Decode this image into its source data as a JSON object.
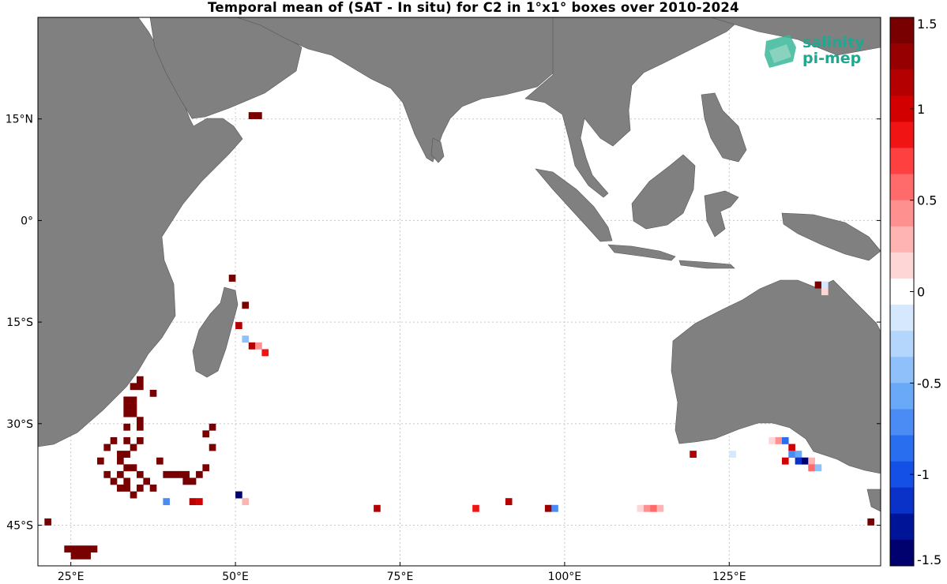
{
  "title": "Temporal mean of (SAT - In situ) for C2 in 1°x1° boxes over 2010-2024",
  "logo": {
    "line1": "salinity",
    "line2": "pi-mep"
  },
  "map": {
    "lon_range": [
      20,
      148
    ],
    "lat_range": [
      -51,
      30
    ],
    "lon_ticks": [
      {
        "value": 25,
        "label": "25°E"
      },
      {
        "value": 50,
        "label": "50°E"
      },
      {
        "value": 75,
        "label": "75°E"
      },
      {
        "value": 100,
        "label": "100°E"
      },
      {
        "value": 125,
        "label": "125°E"
      }
    ],
    "lat_ticks": [
      {
        "value": 15,
        "label": "15°N"
      },
      {
        "value": 0,
        "label": "0°"
      },
      {
        "value": -15,
        "label": "15°S"
      },
      {
        "value": -30,
        "label": "30°S"
      },
      {
        "value": -45,
        "label": "45°S"
      }
    ],
    "grid": true,
    "colors": {
      "land": "#808080",
      "ocean": "#ffffff",
      "grid": "#c8c8c8"
    }
  },
  "colorbar": {
    "range": [
      -1.5,
      1.5
    ],
    "tick_values": [
      1.5,
      1,
      0.5,
      0,
      -0.5,
      -1,
      -1.5
    ],
    "tick_labels": [
      "1.5",
      "1",
      "0.5",
      "0",
      "-0.5",
      "-1",
      "-1.5"
    ],
    "colors": [
      "#00006e",
      "#001498",
      "#0a32c8",
      "#1450e6",
      "#2a6ef0",
      "#4a8cf4",
      "#6aa8f8",
      "#90c0fa",
      "#b4d6fc",
      "#d6e8fe",
      "#ffffff",
      "#ffd6d6",
      "#ffb4b4",
      "#ff9090",
      "#ff6a6a",
      "#ff4040",
      "#f01414",
      "#d20000",
      "#b40000",
      "#960000",
      "#780000"
    ]
  },
  "chart_data": {
    "type": "heatmap",
    "title": "Temporal mean of (SAT - In situ) for C2 in 1°x1° boxes over 2010-2024",
    "value_range": [
      -1.5,
      1.5
    ],
    "cells": [
      {
        "lon": 52,
        "lat": 15,
        "v": 1.5
      },
      {
        "lon": 53,
        "lat": 15,
        "v": 1.5
      },
      {
        "lon": 49,
        "lat": -9,
        "v": 1.5
      },
      {
        "lon": 51,
        "lat": -13,
        "v": 1.5
      },
      {
        "lon": 50,
        "lat": -16,
        "v": 1.2
      },
      {
        "lon": 51,
        "lat": -18,
        "v": -0.5
      },
      {
        "lon": 52,
        "lat": -19,
        "v": 1.1
      },
      {
        "lon": 53,
        "lat": -19,
        "v": 0.4
      },
      {
        "lon": 54,
        "lat": -20,
        "v": 0.8
      },
      {
        "lon": 35,
        "lat": -24,
        "v": 1.5
      },
      {
        "lon": 34,
        "lat": -25,
        "v": 1.5
      },
      {
        "lon": 35,
        "lat": -25,
        "v": 1.5
      },
      {
        "lon": 37,
        "lat": -26,
        "v": 1.5
      },
      {
        "lon": 33,
        "lat": -27,
        "v": 1.5
      },
      {
        "lon": 34,
        "lat": -27,
        "v": 1.5
      },
      {
        "lon": 33,
        "lat": -28,
        "v": 1.5
      },
      {
        "lon": 34,
        "lat": -28,
        "v": 1.5
      },
      {
        "lon": 33,
        "lat": -29,
        "v": 1.5
      },
      {
        "lon": 34,
        "lat": -29,
        "v": 1.5
      },
      {
        "lon": 35,
        "lat": -30,
        "v": 1.5
      },
      {
        "lon": 33,
        "lat": -31,
        "v": 1.5
      },
      {
        "lon": 35,
        "lat": -31,
        "v": 1.5
      },
      {
        "lon": 46,
        "lat": -31,
        "v": 1.5
      },
      {
        "lon": 45,
        "lat": -32,
        "v": 1.5
      },
      {
        "lon": 31,
        "lat": -33,
        "v": 1.5
      },
      {
        "lon": 33,
        "lat": -33,
        "v": 1.5
      },
      {
        "lon": 35,
        "lat": -33,
        "v": 1.5
      },
      {
        "lon": 30,
        "lat": -34,
        "v": 1.5
      },
      {
        "lon": 34,
        "lat": -34,
        "v": 1.5
      },
      {
        "lon": 46,
        "lat": -34,
        "v": 1.5
      },
      {
        "lon": 32,
        "lat": -35,
        "v": 1.5
      },
      {
        "lon": 33,
        "lat": -35,
        "v": 1.5
      },
      {
        "lon": 29,
        "lat": -36,
        "v": 1.5
      },
      {
        "lon": 32,
        "lat": -36,
        "v": 1.5
      },
      {
        "lon": 38,
        "lat": -36,
        "v": 1.5
      },
      {
        "lon": 33,
        "lat": -37,
        "v": 1.5
      },
      {
        "lon": 34,
        "lat": -37,
        "v": 1.5
      },
      {
        "lon": 45,
        "lat": -37,
        "v": 1.5
      },
      {
        "lon": 30,
        "lat": -38,
        "v": 1.5
      },
      {
        "lon": 32,
        "lat": -38,
        "v": 1.5
      },
      {
        "lon": 35,
        "lat": -38,
        "v": 1.5
      },
      {
        "lon": 39,
        "lat": -38,
        "v": 1.5
      },
      {
        "lon": 40,
        "lat": -38,
        "v": 1.5
      },
      {
        "lon": 41,
        "lat": -38,
        "v": 1.5
      },
      {
        "lon": 42,
        "lat": -38,
        "v": 1.5
      },
      {
        "lon": 44,
        "lat": -38,
        "v": 1.5
      },
      {
        "lon": 31,
        "lat": -39,
        "v": 1.5
      },
      {
        "lon": 33,
        "lat": -39,
        "v": 1.5
      },
      {
        "lon": 36,
        "lat": -39,
        "v": 1.5
      },
      {
        "lon": 42,
        "lat": -39,
        "v": 1.5
      },
      {
        "lon": 43,
        "lat": -39,
        "v": 1.5
      },
      {
        "lon": 32,
        "lat": -40,
        "v": 1.5
      },
      {
        "lon": 33,
        "lat": -40,
        "v": 1.5
      },
      {
        "lon": 35,
        "lat": -40,
        "v": 1.5
      },
      {
        "lon": 37,
        "lat": -40,
        "v": 1.5
      },
      {
        "lon": 50,
        "lat": -41,
        "v": -1.5
      },
      {
        "lon": 34,
        "lat": -41,
        "v": 1.5
      },
      {
        "lon": 39,
        "lat": -42,
        "v": -0.7
      },
      {
        "lon": 43,
        "lat": -42,
        "v": 1.2
      },
      {
        "lon": 44,
        "lat": -42,
        "v": 1.0
      },
      {
        "lon": 51,
        "lat": -42,
        "v": 0.3
      },
      {
        "lon": 119,
        "lat": -35,
        "v": 1.2
      },
      {
        "lon": 125,
        "lat": -35,
        "v": -0.2
      },
      {
        "lon": 131,
        "lat": -33,
        "v": 0.1
      },
      {
        "lon": 132,
        "lat": -33,
        "v": 0.4
      },
      {
        "lon": 133,
        "lat": -33,
        "v": -0.9
      },
      {
        "lon": 134,
        "lat": -34,
        "v": 1.0
      },
      {
        "lon": 134,
        "lat": -35,
        "v": -0.7
      },
      {
        "lon": 135,
        "lat": -35,
        "v": -0.6
      },
      {
        "lon": 135,
        "lat": -36,
        "v": -1.2
      },
      {
        "lon": 136,
        "lat": -36,
        "v": -1.4
      },
      {
        "lon": 137,
        "lat": -36,
        "v": 0.3
      },
      {
        "lon": 137,
        "lat": -37,
        "v": 0.5
      },
      {
        "lon": 138,
        "lat": -37,
        "v": -0.4
      },
      {
        "lon": 133,
        "lat": -36,
        "v": 1.0
      },
      {
        "lon": 138,
        "lat": -10,
        "v": 1.5
      },
      {
        "lon": 139,
        "lat": -10,
        "v": -0.2
      },
      {
        "lon": 139,
        "lat": -11,
        "v": 0.1
      },
      {
        "lon": 21,
        "lat": -45,
        "v": 1.4
      },
      {
        "lon": 25,
        "lat": -49,
        "v": 1.5
      },
      {
        "lon": 24,
        "lat": -49,
        "v": 1.5
      },
      {
        "lon": 26,
        "lat": -49,
        "v": 1.5
      },
      {
        "lon": 27,
        "lat": -49,
        "v": 1.5
      },
      {
        "lon": 28,
        "lat": -49,
        "v": 1.5
      },
      {
        "lon": 25,
        "lat": -50,
        "v": 1.5
      },
      {
        "lon": 26,
        "lat": -50,
        "v": 1.5
      },
      {
        "lon": 27,
        "lat": -50,
        "v": 1.5
      },
      {
        "lon": 71,
        "lat": -43,
        "v": 1.1
      },
      {
        "lon": 86,
        "lat": -43,
        "v": 0.9
      },
      {
        "lon": 91,
        "lat": -42,
        "v": 1.1
      },
      {
        "lon": 97,
        "lat": -43,
        "v": 1.3
      },
      {
        "lon": 98,
        "lat": -43,
        "v": -0.7
      },
      {
        "lon": 111,
        "lat": -43,
        "v": 0.2
      },
      {
        "lon": 112,
        "lat": -43,
        "v": 0.4
      },
      {
        "lon": 113,
        "lat": -43,
        "v": 0.6
      },
      {
        "lon": 114,
        "lat": -43,
        "v": 0.3
      },
      {
        "lon": 146,
        "lat": -45,
        "v": 1.5
      }
    ]
  }
}
